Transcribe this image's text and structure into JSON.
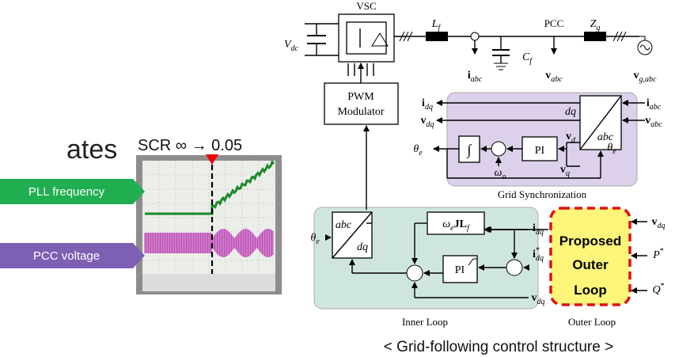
{
  "slide": {
    "partial_text": "ates",
    "scr_label": "SCR ∞ → 0.05",
    "badges": [
      "PLL frequency",
      "PCC voltage"
    ],
    "caption": "< Grid-following control structure >"
  },
  "diagram": {
    "vsc": "VSC",
    "pcc": "PCC",
    "pwm": [
      "PWM",
      "Modulator"
    ],
    "sync_block": {
      "top": "dq",
      "bottom": "abc",
      "integrator": "∫",
      "pi": "PI",
      "title": "Grid Synchronization"
    },
    "inner_block": {
      "top": "abc",
      "bottom": "dq",
      "pi": "PI",
      "title": "Inner Loop"
    },
    "decoupling": [
      {
        "m": "ω",
        "s": "e"
      },
      {
        "m": "JL",
        "s": "f"
      }
    ],
    "outer_block": {
      "lines": [
        "Proposed",
        "Outer",
        "Loop"
      ],
      "title": "Outer Loop"
    },
    "labels": [
      {
        "m": "V",
        "s": "dc"
      },
      {
        "m": "L",
        "s": "f"
      },
      {
        "m": "Z",
        "s": "g"
      },
      {
        "m": "i",
        "s": "abc"
      },
      {
        "m": "C",
        "s": "f"
      },
      {
        "m": "v",
        "s": "abc"
      },
      {
        "m": "v",
        "s": "g,abc"
      },
      {
        "m": "i",
        "s": "dq"
      },
      {
        "m": "v",
        "s": "dq"
      },
      {
        "m": "i",
        "s": "abc"
      },
      {
        "m": "v",
        "s": "abc"
      },
      {
        "m": "θ",
        "s": "e"
      },
      {
        "m": "θ",
        "s": "e"
      },
      {
        "m": "v",
        "s": "d"
      },
      {
        "m": "v",
        "s": "q"
      },
      {
        "m": "ω",
        "s": "o"
      },
      {
        "m": "θ",
        "s": "e"
      },
      {
        "m": "i",
        "s": "dq"
      },
      {
        "m": "i",
        "sup": "*",
        "s": "dq"
      },
      {
        "m": "v",
        "s": "dq"
      },
      {
        "m": "v",
        "s": "dq"
      },
      {
        "m": "P",
        "sup": "*"
      },
      {
        "m": "Q",
        "sup": "*"
      }
    ]
  }
}
